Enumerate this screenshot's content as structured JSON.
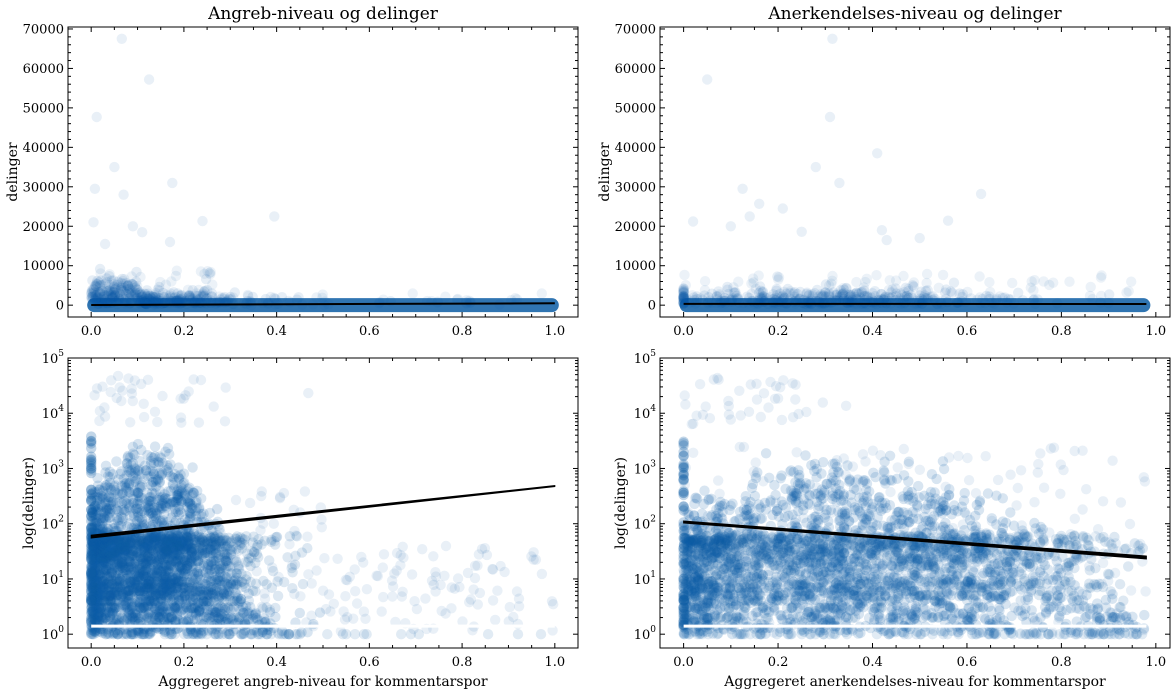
{
  "chart_data": [
    {
      "type": "scatter",
      "title": "Angreb-niveau og delinger",
      "xlabel": "",
      "ylabel": "delinger",
      "xlim": [
        -0.05,
        1.05
      ],
      "ylim": [
        -3000,
        70500
      ],
      "y_scale": "linear",
      "xticks": [
        "0.0",
        "0.2",
        "0.4",
        "0.6",
        "0.8",
        "1.0"
      ],
      "yticks": [
        "0",
        "10000",
        "20000",
        "30000",
        "40000",
        "50000",
        "60000",
        "70000"
      ],
      "point_color": "#0c5da5",
      "trend_color": "#000000",
      "outliers": [
        {
          "x": 0.066,
          "y": 67500
        },
        {
          "x": 0.125,
          "y": 57200
        },
        {
          "x": 0.012,
          "y": 47700
        },
        {
          "x": 0.05,
          "y": 35000
        },
        {
          "x": 0.175,
          "y": 31000
        },
        {
          "x": 0.008,
          "y": 29500
        },
        {
          "x": 0.07,
          "y": 28000
        },
        {
          "x": 0.395,
          "y": 22500
        },
        {
          "x": 0.24,
          "y": 21300
        },
        {
          "x": 0.005,
          "y": 21000
        },
        {
          "x": 0.09,
          "y": 20000
        },
        {
          "x": 0.11,
          "y": 18500
        },
        {
          "x": 0.17,
          "y": 16000
        },
        {
          "x": 0.03,
          "y": 15500
        }
      ],
      "trend_line": {
        "x": [
          0.0,
          1.0
        ],
        "y": [
          30,
          480
        ]
      }
    },
    {
      "type": "scatter",
      "title": "Anerkendelses-niveau og delinger",
      "xlabel": "",
      "ylabel": "delinger",
      "xlim": [
        -0.05,
        1.03
      ],
      "ylim": [
        -3000,
        70500
      ],
      "y_scale": "linear",
      "xticks": [
        "0.0",
        "0.2",
        "0.4",
        "0.6",
        "0.8",
        "1.0"
      ],
      "yticks": [
        "0",
        "10000",
        "20000",
        "30000",
        "40000",
        "50000",
        "60000",
        "70000"
      ],
      "point_color": "#0c5da5",
      "trend_color": "#000000",
      "outliers": [
        {
          "x": 0.315,
          "y": 67500
        },
        {
          "x": 0.05,
          "y": 57200
        },
        {
          "x": 0.31,
          "y": 47700
        },
        {
          "x": 0.41,
          "y": 38500
        },
        {
          "x": 0.28,
          "y": 35000
        },
        {
          "x": 0.33,
          "y": 31000
        },
        {
          "x": 0.125,
          "y": 29500
        },
        {
          "x": 0.63,
          "y": 28200
        },
        {
          "x": 0.16,
          "y": 25700
        },
        {
          "x": 0.21,
          "y": 24500
        },
        {
          "x": 0.14,
          "y": 22500
        },
        {
          "x": 0.56,
          "y": 21400
        },
        {
          "x": 0.02,
          "y": 21200
        },
        {
          "x": 0.1,
          "y": 20000
        },
        {
          "x": 0.42,
          "y": 19000
        },
        {
          "x": 0.43,
          "y": 16500
        },
        {
          "x": 0.5,
          "y": 17000
        },
        {
          "x": 0.25,
          "y": 18600
        }
      ],
      "trend_line": {
        "x": [
          0.0,
          0.98
        ],
        "y": [
          340,
          290
        ]
      }
    },
    {
      "type": "scatter",
      "title": "",
      "xlabel": "Aggregeret angreb-niveau for kommentarspor",
      "ylabel": "log(delinger)",
      "xlim": [
        -0.05,
        1.05
      ],
      "ylim_log10": [
        -0.25,
        5.0
      ],
      "y_scale": "log",
      "xticks": [
        "0.0",
        "0.2",
        "0.4",
        "0.6",
        "0.8",
        "1.0"
      ],
      "yticks": [
        "10^0",
        "10^1",
        "10^2",
        "10^3",
        "10^4",
        "10^5"
      ],
      "point_color": "#0c5da5",
      "trend_color": "#000000",
      "trend_band": {
        "x": [
          0.0,
          1.0
        ],
        "y_low": [
          55,
          470
        ],
        "y_high": [
          62,
          490
        ]
      }
    },
    {
      "type": "scatter",
      "title": "",
      "xlabel": "Aggregeret anerkendelses-niveau for kommentarspor",
      "ylabel": "log(delinger)",
      "xlim": [
        -0.05,
        1.03
      ],
      "ylim_log10": [
        -0.25,
        5.0
      ],
      "y_scale": "log",
      "xticks": [
        "0.0",
        "0.2",
        "0.4",
        "0.6",
        "0.8",
        "1.0"
      ],
      "yticks": [
        "10^0",
        "10^1",
        "10^2",
        "10^3",
        "10^4",
        "10^5"
      ],
      "point_color": "#0c5da5",
      "trend_color": "#000000",
      "trend_band": {
        "x": [
          0.0,
          0.98
        ],
        "y_low": [
          103,
          23
        ],
        "y_high": [
          112,
          26
        ]
      }
    }
  ]
}
